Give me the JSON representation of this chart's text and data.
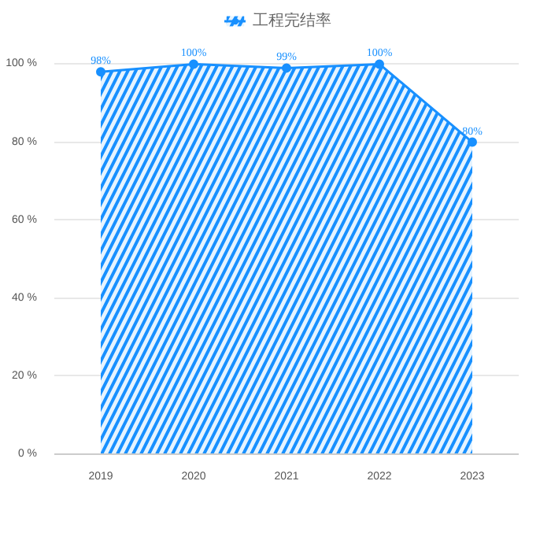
{
  "chart_data": {
    "type": "area",
    "categories": [
      "2019",
      "2020",
      "2021",
      "2022",
      "2023"
    ],
    "series": [
      {
        "name": "工程完结率",
        "color": "#1890ff",
        "values": [
          98,
          100,
          99,
          100,
          80
        ],
        "value_labels": [
          "98%",
          "100%",
          "99%",
          "100%",
          "80%"
        ]
      }
    ],
    "ylim": [
      0,
      100
    ],
    "yticks": [
      {
        "value": 0,
        "label": "0 %"
      },
      {
        "value": 20,
        "label": "20 %"
      },
      {
        "value": 40,
        "label": "40 %"
      },
      {
        "value": 60,
        "label": "60 %"
      },
      {
        "value": 80,
        "label": "80 %"
      },
      {
        "value": 100,
        "label": "100 %"
      }
    ],
    "grid": "y",
    "legend": "top",
    "marker": "circle"
  }
}
